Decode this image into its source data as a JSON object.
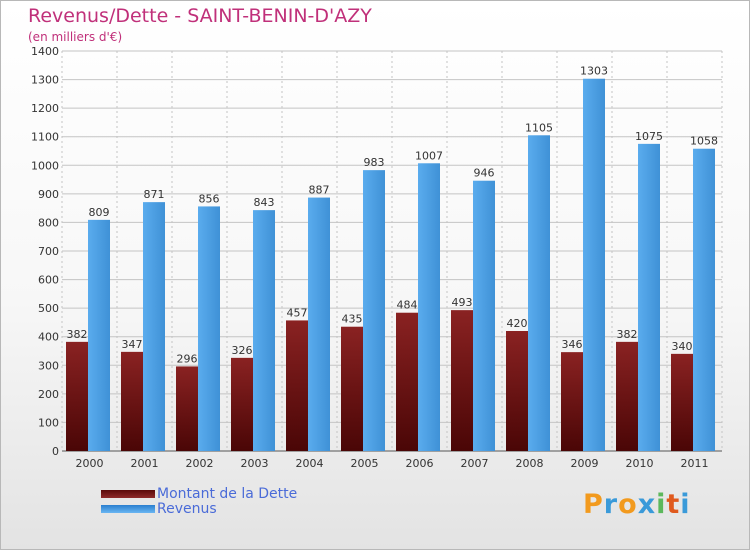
{
  "chart_data": {
    "type": "bar",
    "title": "Revenus/Dette - SAINT-BENIN-D'AZY",
    "subtitle": "(en milliers d'€)",
    "categories": [
      "2000",
      "2001",
      "2002",
      "2003",
      "2004",
      "2005",
      "2006",
      "2007",
      "2008",
      "2009",
      "2010",
      "2011"
    ],
    "series": [
      {
        "name": "Montant de la Dette",
        "color": "#7a1a1a",
        "values": [
          382,
          347,
          296,
          326,
          457,
          435,
          484,
          493,
          420,
          346,
          382,
          340
        ]
      },
      {
        "name": "Revenus",
        "color": "#4d9fe0",
        "values": [
          809,
          871,
          856,
          843,
          887,
          983,
          1007,
          946,
          1105,
          1303,
          1075,
          1058
        ]
      }
    ],
    "ylim": [
      0,
      1400
    ],
    "yticks": [
      0,
      100,
      200,
      300,
      400,
      500,
      600,
      700,
      800,
      900,
      1000,
      1100,
      1200,
      1300,
      1400
    ],
    "grid": true,
    "legend_position": "bottom-left"
  },
  "logo": {
    "text": "Proxiti",
    "letters": [
      {
        "char": "P",
        "color": "#f29a1e"
      },
      {
        "char": "r",
        "color": "#3a9ad9"
      },
      {
        "char": "o",
        "color": "#f29a1e"
      },
      {
        "char": "x",
        "color": "#3a9ad9"
      },
      {
        "char": "i",
        "color": "#5cb85c"
      },
      {
        "char": "t",
        "color": "#e05a1e"
      },
      {
        "char": "i",
        "color": "#3a9ad9"
      }
    ]
  }
}
